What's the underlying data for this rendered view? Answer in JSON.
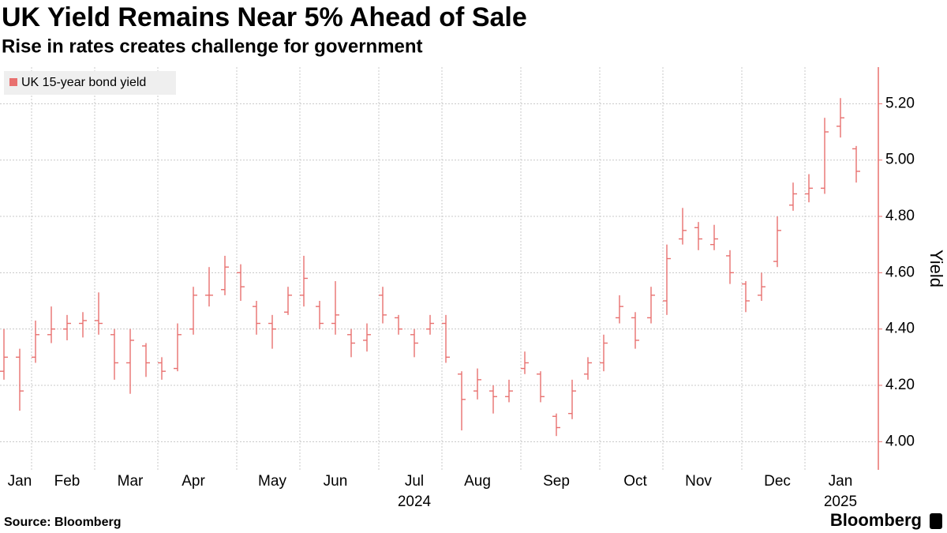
{
  "chart_data": {
    "type": "ohlc",
    "title": "UK Yield Remains Near 5% Ahead of Sale",
    "subtitle": "Rise in rates creates challenge for government",
    "source": "Source: Bloomberg",
    "brand": "Bloomberg",
    "y_label": "Yield",
    "legend": "top-left",
    "grid": true,
    "categories": [
      null,
      "Jan",
      null,
      null,
      "Feb",
      null,
      null,
      null,
      "Mar",
      null,
      null,
      null,
      "Apr",
      null,
      null,
      null,
      null,
      "May",
      null,
      null,
      null,
      "Jun",
      null,
      null,
      null,
      null,
      "Jul\n2024",
      null,
      null,
      null,
      "Aug",
      null,
      null,
      null,
      null,
      "Sep",
      null,
      null,
      null,
      null,
      "Oct",
      null,
      null,
      null,
      "Nov",
      null,
      null,
      null,
      null,
      "Dec",
      null,
      null,
      null,
      "Jan\n2025",
      null
    ],
    "series": [
      {
        "name": "UK 15-year bond yield",
        "color": "#e8706f",
        "open": [
          4.25,
          4.3,
          4.3,
          4.38,
          4.4,
          4.42,
          4.43,
          4.38,
          4.28,
          4.34,
          4.28,
          4.26,
          4.4,
          4.52,
          4.54,
          4.6,
          4.48,
          4.42,
          4.46,
          4.52,
          4.48,
          4.42,
          4.38,
          4.36,
          4.52,
          4.44,
          4.38,
          4.4,
          4.42,
          4.24,
          4.18,
          4.18,
          4.16,
          4.26,
          4.24,
          4.09,
          4.1,
          4.24,
          4.28,
          4.44,
          4.44,
          4.44,
          4.5,
          4.72,
          4.76,
          4.7,
          4.66,
          4.56,
          4.52,
          4.64,
          4.84,
          4.88,
          4.9,
          5.12,
          5.04
        ],
        "high": [
          4.4,
          4.33,
          4.43,
          4.48,
          4.45,
          4.46,
          4.53,
          4.4,
          4.4,
          4.35,
          4.3,
          4.42,
          4.55,
          4.62,
          4.66,
          4.63,
          4.5,
          4.45,
          4.55,
          4.66,
          4.5,
          4.57,
          4.4,
          4.42,
          4.55,
          4.45,
          4.4,
          4.45,
          4.45,
          4.25,
          4.26,
          4.2,
          4.22,
          4.32,
          4.25,
          4.1,
          4.22,
          4.3,
          4.38,
          4.52,
          4.46,
          4.55,
          4.7,
          4.83,
          4.78,
          4.77,
          4.68,
          4.57,
          4.6,
          4.8,
          4.92,
          4.95,
          5.15,
          5.22,
          5.05
        ],
        "low": [
          4.22,
          4.11,
          4.28,
          4.35,
          4.36,
          4.37,
          4.38,
          4.22,
          4.17,
          4.23,
          4.22,
          4.25,
          4.38,
          4.48,
          4.52,
          4.5,
          4.38,
          4.33,
          4.45,
          4.48,
          4.4,
          4.38,
          4.3,
          4.32,
          4.42,
          4.38,
          4.3,
          4.38,
          4.28,
          4.04,
          4.15,
          4.1,
          4.14,
          4.24,
          4.14,
          4.02,
          4.08,
          4.22,
          4.25,
          4.42,
          4.33,
          4.42,
          4.45,
          4.7,
          4.68,
          4.68,
          4.56,
          4.46,
          4.5,
          4.62,
          4.82,
          4.85,
          4.88,
          5.08,
          4.92
        ],
        "close": [
          4.3,
          4.18,
          4.38,
          4.4,
          4.42,
          4.43,
          4.42,
          4.28,
          4.36,
          4.28,
          4.25,
          4.38,
          4.52,
          4.52,
          4.62,
          4.55,
          4.42,
          4.4,
          4.52,
          4.58,
          4.42,
          4.45,
          4.35,
          4.38,
          4.45,
          4.4,
          4.35,
          4.42,
          4.3,
          4.15,
          4.22,
          4.16,
          4.18,
          4.28,
          4.16,
          4.05,
          4.18,
          4.28,
          4.35,
          4.48,
          4.36,
          4.52,
          4.65,
          4.75,
          4.72,
          4.72,
          4.6,
          4.5,
          4.55,
          4.75,
          4.88,
          4.9,
          5.1,
          5.15,
          4.96
        ]
      }
    ],
    "ylim": [
      3.9,
      5.33
    ],
    "yticks": [
      {
        "value": 4,
        "label": "4.00"
      },
      {
        "value": 4.2,
        "label": "4.20"
      },
      {
        "value": 4.4,
        "label": "4.40"
      },
      {
        "value": 4.6,
        "label": "4.60"
      },
      {
        "value": 4.8,
        "label": "4.80"
      },
      {
        "value": 5,
        "label": "5.00"
      },
      {
        "value": 5.2,
        "label": "5.20"
      }
    ]
  }
}
